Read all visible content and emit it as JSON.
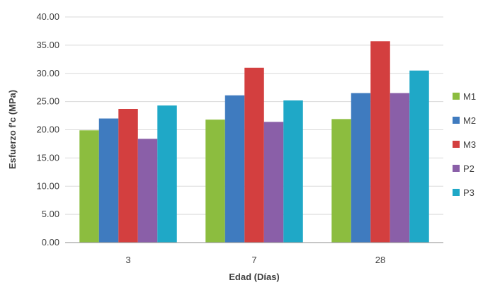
{
  "chart_data": {
    "type": "bar",
    "categories": [
      "3",
      "7",
      "28"
    ],
    "series": [
      {
        "name": "M1",
        "color": "#8cbd3f",
        "values": [
          19.9,
          21.8,
          21.9
        ]
      },
      {
        "name": "M2",
        "color": "#3f7bbf",
        "values": [
          22.0,
          26.1,
          26.5
        ]
      },
      {
        "name": "M3",
        "color": "#d33f3f",
        "values": [
          23.7,
          31.0,
          35.7
        ]
      },
      {
        "name": "P2",
        "color": "#8a5fa8",
        "values": [
          18.4,
          21.4,
          26.5
        ]
      },
      {
        "name": "P3",
        "color": "#1fa8c7",
        "values": [
          24.3,
          25.2,
          30.5
        ]
      }
    ],
    "yticks": [
      "0.00",
      "5.00",
      "10.00",
      "15.00",
      "20.00",
      "25.00",
      "30.00",
      "35.00",
      "40.00"
    ],
    "ylim": [
      0,
      40
    ],
    "xlabel": "Edad (Días)",
    "ylabel": "Esfuerzo f'c (MPa)",
    "grid": true,
    "legend_position": "right"
  }
}
